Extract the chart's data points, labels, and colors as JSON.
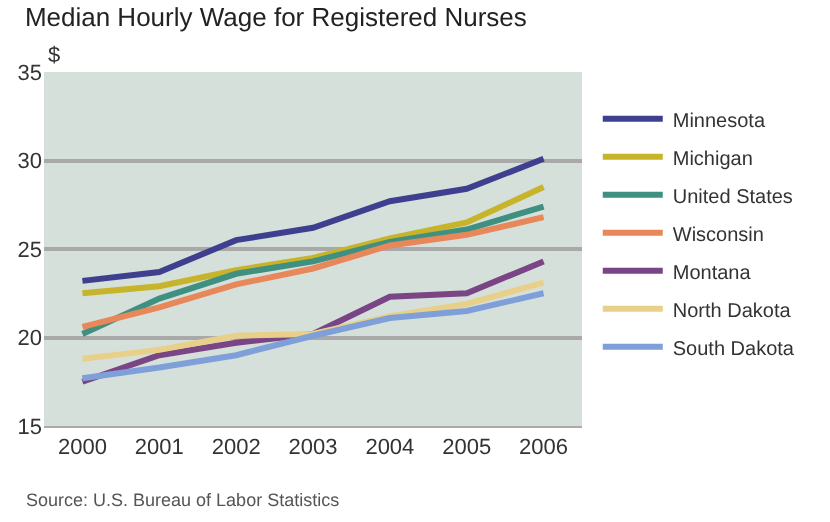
{
  "chart_data": {
    "type": "line",
    "title": "Median Hourly Wage for Registered Nurses",
    "ylabel": "$",
    "categories": [
      "2000",
      "2001",
      "2002",
      "2003",
      "2004",
      "2005",
      "2006"
    ],
    "series": [
      {
        "name": "Minnesota",
        "color": "#3f3f8f",
        "values": [
          23.2,
          23.7,
          25.5,
          26.2,
          27.7,
          28.4,
          30.1
        ]
      },
      {
        "name": "Michigan",
        "color": "#c8b42a",
        "values": [
          22.5,
          22.9,
          23.8,
          24.5,
          25.6,
          26.5,
          28.5
        ]
      },
      {
        "name": "United States",
        "color": "#3f9080",
        "values": [
          20.2,
          22.2,
          23.6,
          24.3,
          25.4,
          26.1,
          27.4
        ]
      },
      {
        "name": "Wisconsin",
        "color": "#e8875a",
        "values": [
          20.6,
          21.7,
          23.0,
          23.9,
          25.2,
          25.8,
          26.8
        ]
      },
      {
        "name": "Montana",
        "color": "#7a4585",
        "values": [
          17.5,
          19.0,
          19.7,
          20.2,
          22.3,
          22.5,
          24.3
        ]
      },
      {
        "name": "North Dakota",
        "color": "#e8d08a",
        "values": [
          18.8,
          19.3,
          20.1,
          20.2,
          21.2,
          21.9,
          23.1
        ]
      },
      {
        "name": "South Dakota",
        "color": "#7f9fd8",
        "values": [
          17.7,
          18.3,
          19.0,
          20.1,
          21.1,
          21.5,
          22.5
        ]
      }
    ],
    "ylim": [
      15,
      35
    ],
    "yticks": [
      15,
      20,
      25,
      30,
      35
    ],
    "grid": "y",
    "legend": "right",
    "marker": "none",
    "line_style": "solid",
    "annotations": [
      "Source: U.S. Bureau of Labor Statistics"
    ]
  }
}
